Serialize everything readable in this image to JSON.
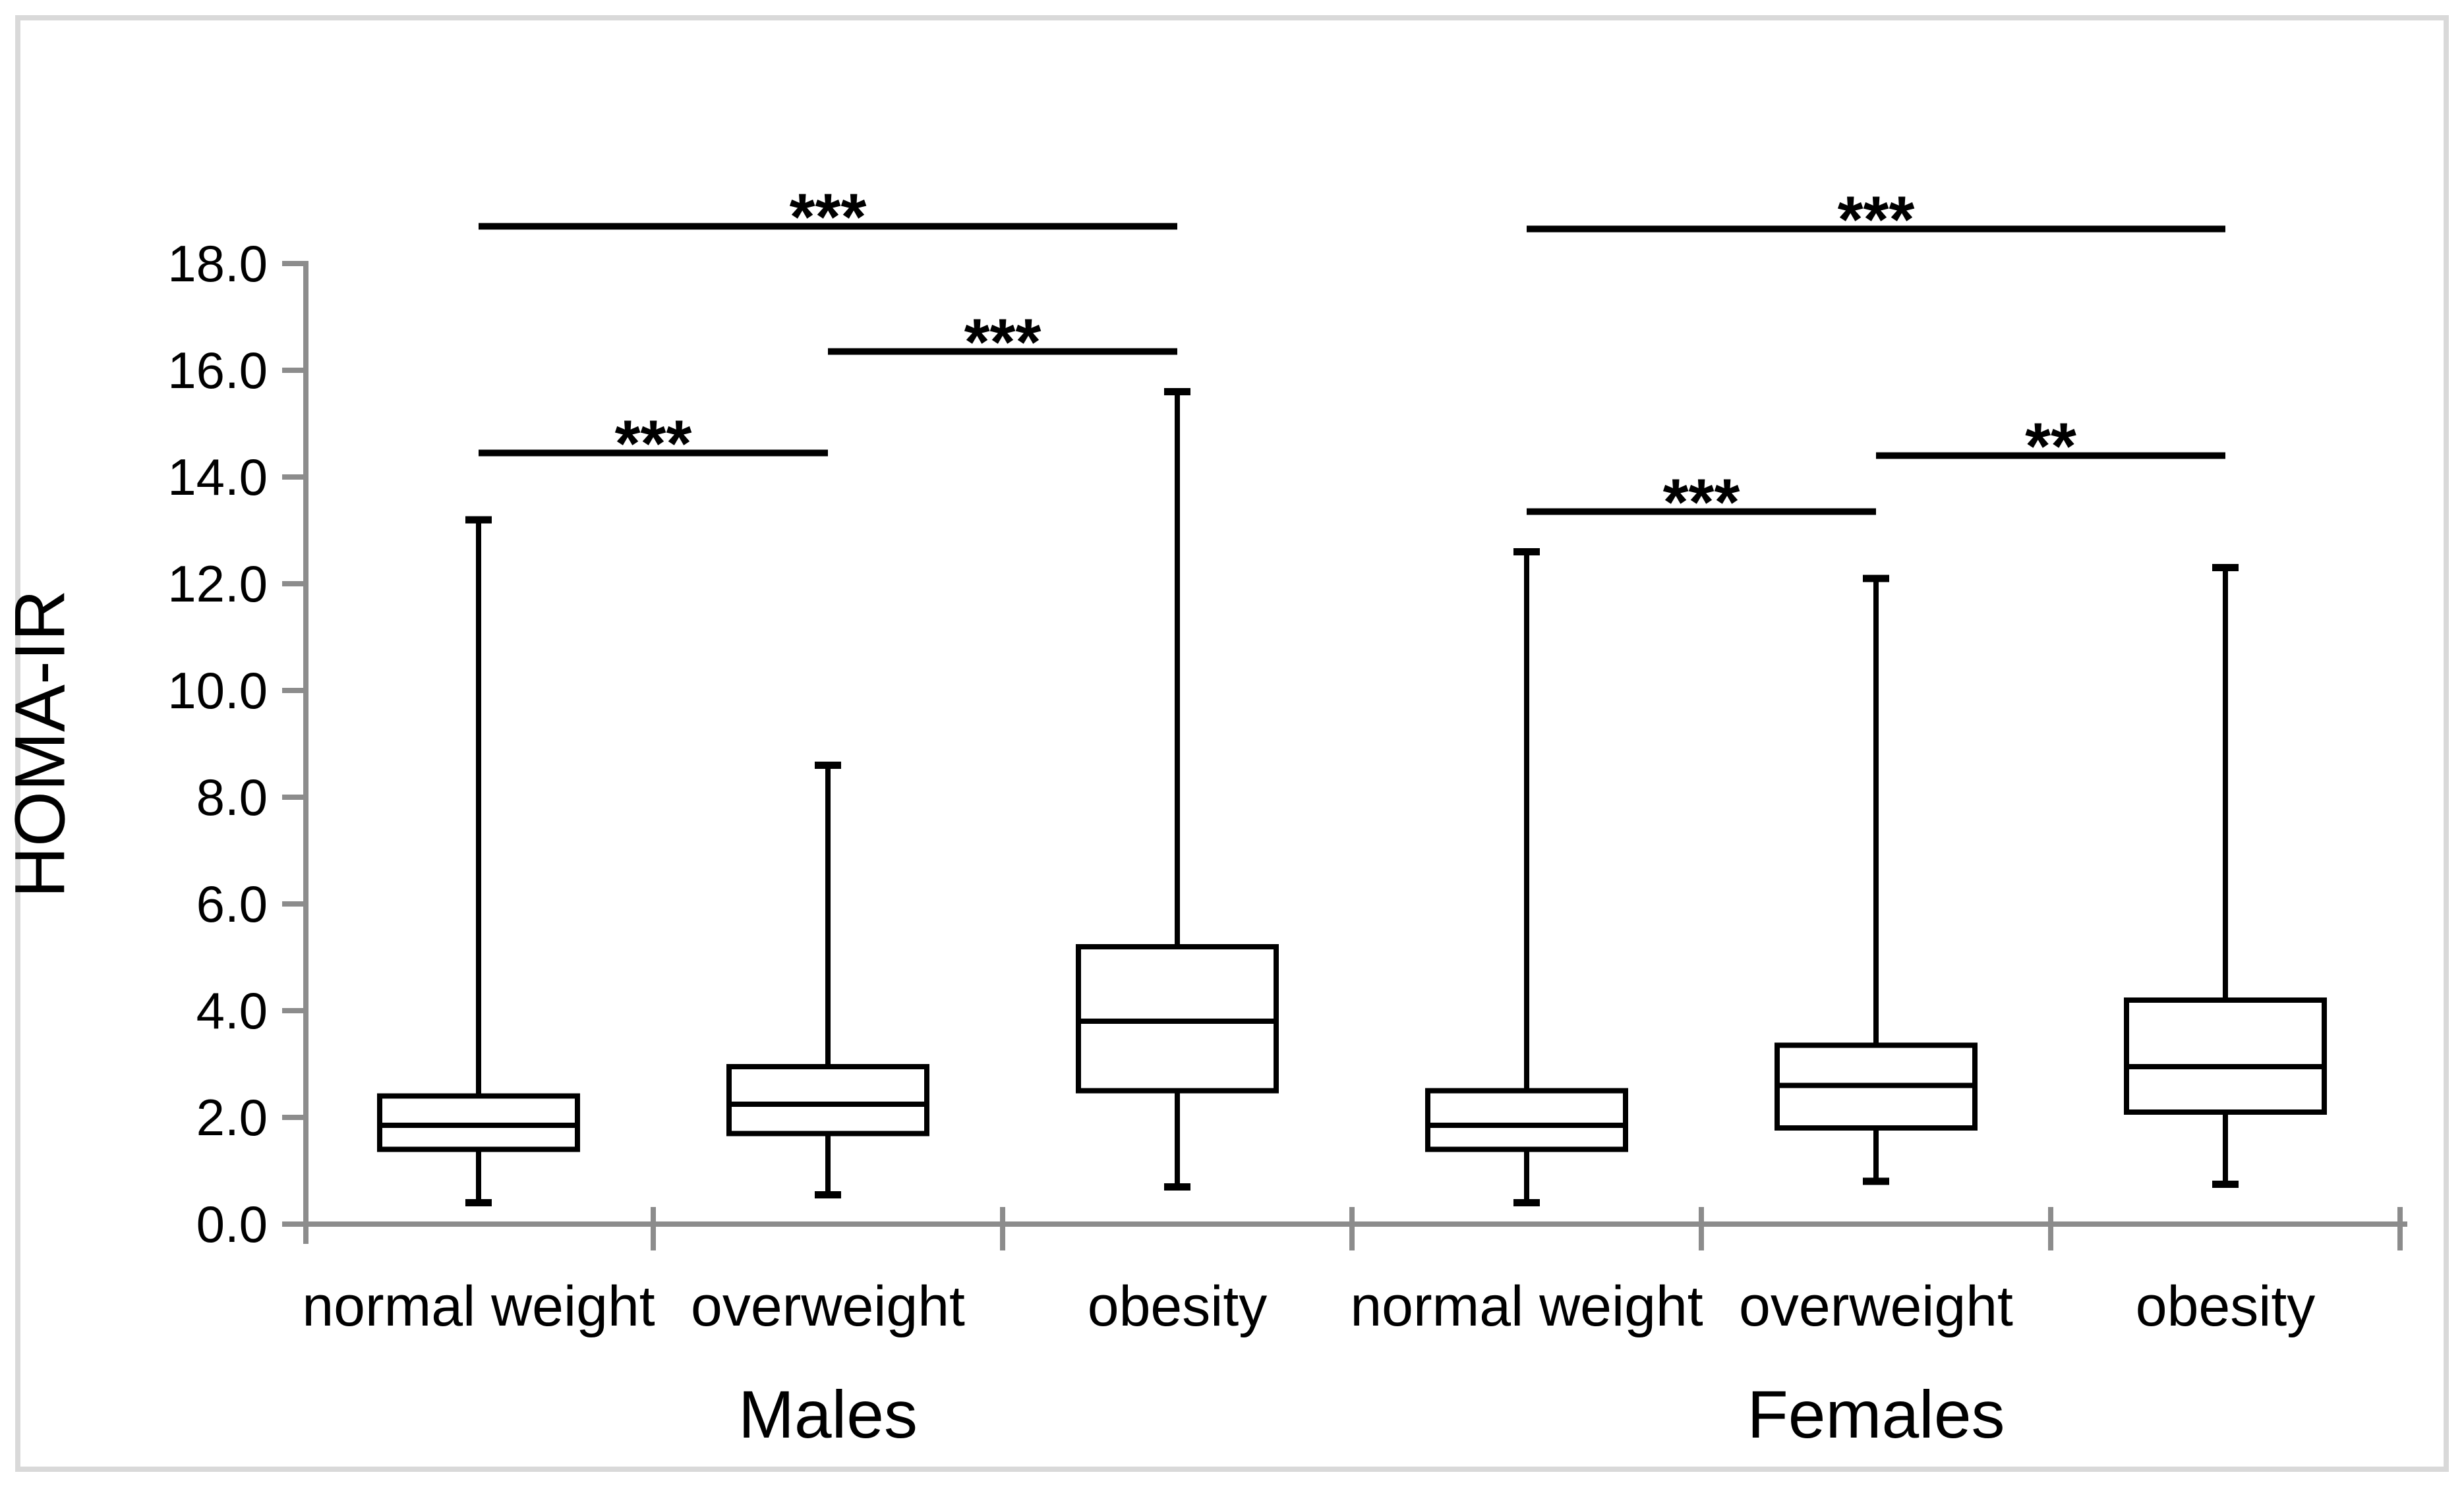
{
  "figure": {
    "background_color": "#ffffff",
    "frame_color": "#d9d9d9",
    "axis_color": "#8c8c8c",
    "line_color": "#000000"
  },
  "chart_data": {
    "type": "boxplot",
    "title": "",
    "ylabel": "HOMA-IR",
    "xlabel": "",
    "ylim": [
      0,
      18
    ],
    "ytick_step": 2,
    "ytick_labels": [
      "0.0",
      "2.0",
      "4.0",
      "6.0",
      "8.0",
      "10.0",
      "12.0",
      "14.0",
      "16.0",
      "18.0"
    ],
    "grid": false,
    "groups": [
      {
        "label": "Males",
        "categories": [
          "normal weight",
          "overweight",
          "obesity"
        ],
        "boxes": [
          {
            "category": "normal weight",
            "min": 0.4,
            "q1": 1.4,
            "median": 1.85,
            "q3": 2.4,
            "max": 13.2
          },
          {
            "category": "overweight",
            "min": 0.55,
            "q1": 1.7,
            "median": 2.25,
            "q3": 2.95,
            "max": 8.6
          },
          {
            "category": "obesity",
            "min": 0.7,
            "q1": 2.5,
            "median": 3.8,
            "q3": 5.2,
            "max": 15.6
          }
        ]
      },
      {
        "label": "Females",
        "categories": [
          "normal weight",
          "overweight",
          "obesity"
        ],
        "boxes": [
          {
            "category": "normal weight",
            "min": 0.4,
            "q1": 1.4,
            "median": 1.85,
            "q3": 2.5,
            "max": 12.6
          },
          {
            "category": "overweight",
            "min": 0.8,
            "q1": 1.8,
            "median": 2.6,
            "q3": 3.35,
            "max": 12.1
          },
          {
            "category": "obesity",
            "min": 0.75,
            "q1": 2.1,
            "median": 2.95,
            "q3": 4.2,
            "max": 12.3
          }
        ]
      }
    ],
    "significance_bars": [
      {
        "group": "Males",
        "group_index": 0,
        "from": 0,
        "to": 1,
        "label": "***",
        "height": 14.45
      },
      {
        "group": "Males",
        "group_index": 0,
        "from": 1,
        "to": 2,
        "label": "***",
        "height": 16.35
      },
      {
        "group": "Males",
        "group_index": 0,
        "from": 0,
        "to": 2,
        "label": "***",
        "height": 18.7
      },
      {
        "group": "Females",
        "group_index": 1,
        "from": 0,
        "to": 1,
        "label": "***",
        "height": 13.35
      },
      {
        "group": "Females",
        "group_index": 1,
        "from": 1,
        "to": 2,
        "label": "**",
        "height": 14.4
      },
      {
        "group": "Females",
        "group_index": 1,
        "from": 0,
        "to": 2,
        "label": "***",
        "height": 18.65
      }
    ]
  }
}
